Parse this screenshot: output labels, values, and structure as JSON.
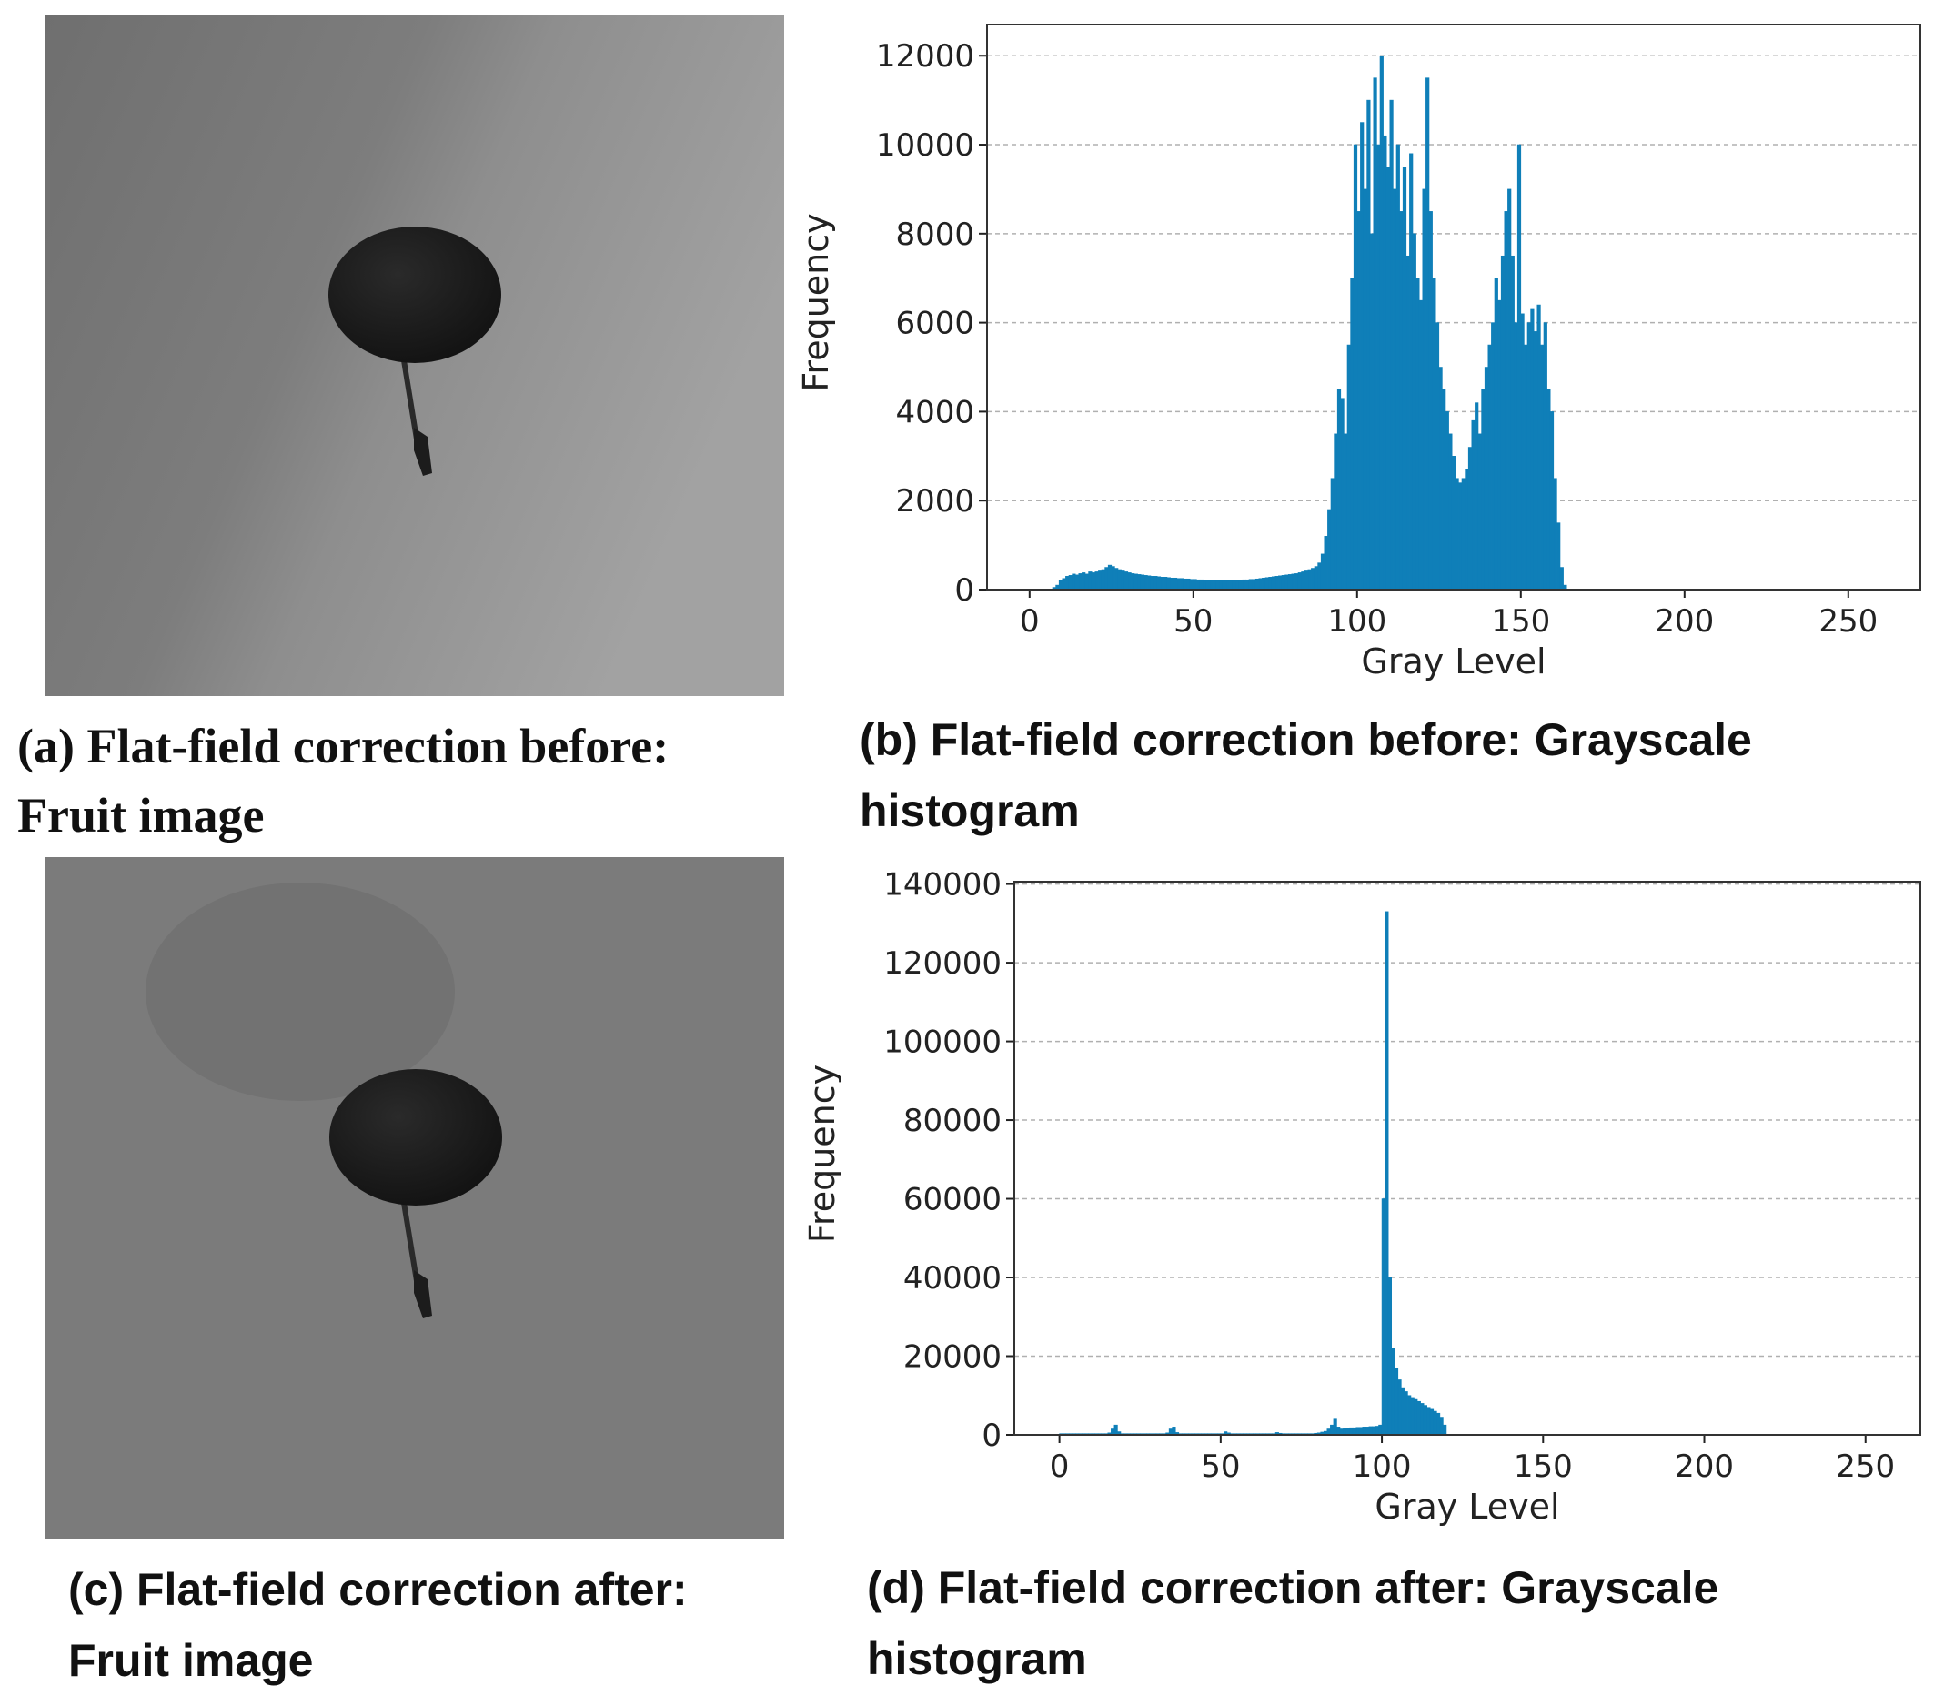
{
  "images": [
    {
      "caption": [
        "(a) Flat-field correction before:",
        "Fruit image"
      ]
    },
    {
      "caption": [
        "(c) Flat-field correction after:",
        "Fruit image"
      ]
    }
  ],
  "chart_data": [
    {
      "type": "histogram",
      "caption": [
        "(b) Flat-field correction before: Grayscale",
        "histogram"
      ],
      "xlabel": "Gray Level",
      "ylabel": "Frequency",
      "color": "#0f7fb8",
      "grid": true,
      "xlim": [
        -13,
        272
      ],
      "ylim": [
        0,
        12700
      ],
      "xticks": [
        0,
        50,
        100,
        150,
        200,
        250
      ],
      "yticks": [
        0,
        2000,
        4000,
        6000,
        8000,
        10000,
        12000
      ],
      "bins": [
        0,
        1,
        2,
        3,
        4,
        5,
        6,
        7,
        8,
        9,
        10,
        11,
        12,
        13,
        14,
        15,
        16,
        17,
        18,
        19,
        20,
        21,
        22,
        23,
        24,
        25,
        26,
        27,
        28,
        29,
        30,
        31,
        32,
        33,
        34,
        35,
        36,
        37,
        38,
        39,
        40,
        41,
        42,
        43,
        44,
        45,
        46,
        47,
        48,
        49,
        50,
        51,
        52,
        53,
        54,
        55,
        56,
        57,
        58,
        59,
        60,
        61,
        62,
        63,
        64,
        65,
        66,
        67,
        68,
        69,
        70,
        71,
        72,
        73,
        74,
        75,
        76,
        77,
        78,
        79,
        80,
        81,
        82,
        83,
        84,
        85,
        86,
        87,
        88,
        89,
        90,
        91,
        92,
        93,
        94,
        95,
        96,
        97,
        98,
        99,
        100,
        101,
        102,
        103,
        104,
        105,
        106,
        107,
        108,
        109,
        110,
        111,
        112,
        113,
        114,
        115,
        116,
        117,
        118,
        119,
        120,
        121,
        122,
        123,
        124,
        125,
        126,
        127,
        128,
        129,
        130,
        131,
        132,
        133,
        134,
        135,
        136,
        137,
        138,
        139,
        140,
        141,
        142,
        143,
        144,
        145,
        146,
        147,
        148,
        149,
        150,
        151,
        152,
        153,
        154,
        155,
        156,
        157,
        158,
        159,
        160,
        161,
        162,
        163,
        164,
        165
      ],
      "values": [
        0,
        0,
        0,
        0,
        0,
        0,
        0,
        50,
        100,
        200,
        250,
        300,
        320,
        350,
        330,
        360,
        380,
        350,
        400,
        380,
        400,
        420,
        450,
        500,
        550,
        520,
        480,
        450,
        420,
        400,
        380,
        360,
        350,
        340,
        330,
        320,
        310,
        300,
        300,
        290,
        280,
        280,
        270,
        260,
        260,
        250,
        250,
        240,
        240,
        230,
        230,
        220,
        220,
        210,
        210,
        200,
        200,
        200,
        200,
        200,
        200,
        200,
        210,
        210,
        210,
        220,
        220,
        230,
        230,
        240,
        250,
        260,
        270,
        280,
        290,
        300,
        310,
        320,
        330,
        340,
        350,
        360,
        380,
        400,
        420,
        450,
        480,
        520,
        600,
        800,
        1200,
        1800,
        2500,
        3500,
        4500,
        4300,
        3500,
        5500,
        7000,
        10000,
        8500,
        10500,
        9000,
        11000,
        8000,
        11500,
        10000,
        12000,
        10200,
        9500,
        11000,
        9000,
        10000,
        8500,
        9500,
        7500,
        9800,
        8000,
        7000,
        6500,
        9000,
        11500,
        8500,
        7000,
        6000,
        5000,
        4500,
        4000,
        3500,
        3000,
        2500,
        2400,
        2500,
        2700,
        3200,
        3800,
        4200,
        3500,
        4500,
        5000,
        5500,
        6000,
        7000,
        6500,
        7500,
        8500,
        9000,
        7500,
        6000,
        10000,
        6200,
        5500,
        6000,
        6300,
        5800,
        6400,
        5500,
        6000,
        4500,
        4000,
        2500,
        1500,
        500,
        100,
        0
      ]
    },
    {
      "type": "histogram",
      "caption": [
        "(d) Flat-field correction after: Grayscale",
        "histogram"
      ],
      "xlabel": "Gray Level",
      "ylabel": "Frequency",
      "color": "#0f7fb8",
      "grid": true,
      "xlim": [
        -14,
        267
      ],
      "ylim": [
        0,
        140600
      ],
      "xticks": [
        0,
        50,
        100,
        150,
        200,
        250
      ],
      "yticks": [
        0,
        20000,
        40000,
        60000,
        80000,
        100000,
        120000,
        140000
      ],
      "bins": [
        0,
        1,
        2,
        3,
        4,
        5,
        6,
        7,
        8,
        9,
        10,
        11,
        12,
        13,
        14,
        15,
        16,
        17,
        18,
        19,
        20,
        21,
        22,
        23,
        24,
        25,
        26,
        27,
        28,
        29,
        30,
        31,
        32,
        33,
        34,
        35,
        36,
        37,
        38,
        39,
        40,
        41,
        42,
        43,
        44,
        45,
        46,
        47,
        48,
        49,
        50,
        51,
        52,
        53,
        54,
        55,
        56,
        57,
        58,
        59,
        60,
        61,
        62,
        63,
        64,
        65,
        66,
        67,
        68,
        69,
        70,
        71,
        72,
        73,
        74,
        75,
        76,
        77,
        78,
        79,
        80,
        81,
        82,
        83,
        84,
        85,
        86,
        87,
        88,
        89,
        90,
        91,
        92,
        93,
        94,
        95,
        96,
        97,
        98,
        99,
        100,
        101,
        102,
        103,
        104,
        105,
        106,
        107,
        108,
        109,
        110,
        111,
        112,
        113,
        114,
        115,
        116,
        117,
        118,
        119,
        120
      ],
      "values": [
        300,
        300,
        300,
        300,
        300,
        300,
        300,
        300,
        300,
        300,
        300,
        300,
        300,
        300,
        300,
        500,
        1500,
        2500,
        800,
        300,
        300,
        300,
        300,
        300,
        300,
        300,
        300,
        300,
        300,
        300,
        300,
        300,
        300,
        500,
        1500,
        2000,
        600,
        300,
        300,
        300,
        300,
        300,
        300,
        300,
        300,
        300,
        300,
        300,
        300,
        300,
        300,
        800,
        500,
        300,
        300,
        300,
        300,
        300,
        300,
        300,
        300,
        300,
        300,
        300,
        300,
        300,
        300,
        600,
        400,
        300,
        300,
        300,
        300,
        300,
        300,
        300,
        300,
        300,
        300,
        400,
        500,
        700,
        900,
        1500,
        2500,
        4000,
        2000,
        1500,
        1600,
        1700,
        1800,
        1800,
        1900,
        1900,
        2000,
        2000,
        2100,
        2100,
        2200,
        2500,
        60000,
        133000,
        40000,
        22000,
        17000,
        14000,
        12000,
        11000,
        10000,
        9500,
        9000,
        8500,
        8000,
        7500,
        7000,
        6500,
        6000,
        5500,
        4500,
        2500
      ]
    }
  ]
}
